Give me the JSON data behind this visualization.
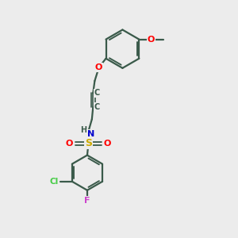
{
  "bg_color": "#ececec",
  "bond_color": "#3a5a4a",
  "atom_colors": {
    "O": "#ff0000",
    "N": "#0000cc",
    "S": "#ccaa00",
    "Cl": "#44cc44",
    "F": "#cc44cc",
    "C": "#3a5a4a",
    "H": "#3a5a4a"
  },
  "figsize": [
    3.0,
    3.0
  ],
  "dpi": 100
}
